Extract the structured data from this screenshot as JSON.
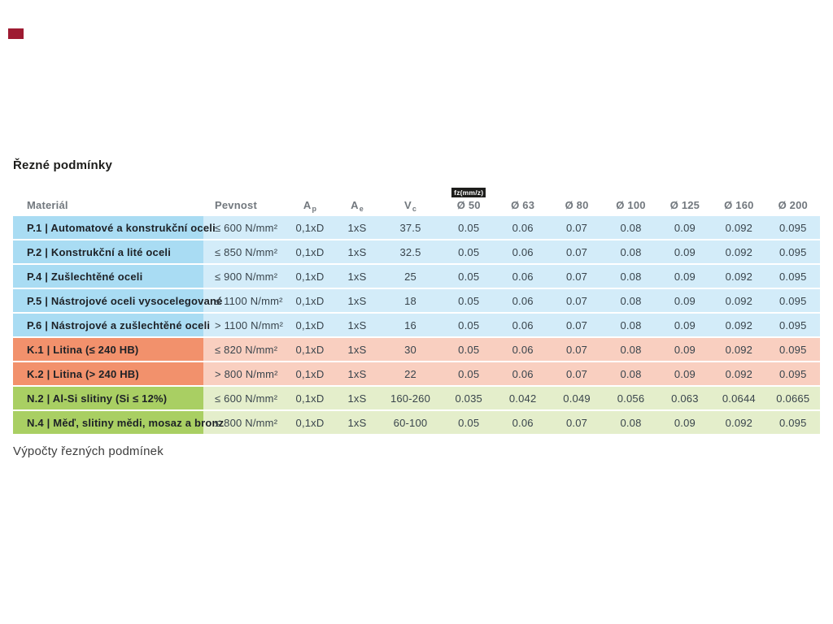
{
  "brand": {
    "mark_color": "#9e1b32"
  },
  "title": "Řezné podmínky",
  "table": {
    "header": {
      "material": "Materiál",
      "strength": "Pevnost",
      "ap_base": "A",
      "ap_sub": "p",
      "ae_base": "A",
      "ae_sub": "e",
      "vc_base": "V",
      "vc_sub": "c",
      "fz_badge": "fz(mm/z)",
      "diameters": [
        "Ø 50",
        "Ø 63",
        "Ø 80",
        "Ø 100",
        "Ø 125",
        "Ø 160",
        "Ø 200"
      ]
    },
    "group_colors": {
      "P": {
        "dark": "#a9dcf3",
        "light": "#d3ecf9"
      },
      "K": {
        "dark": "#f2916c",
        "light": "#f9cfc0"
      },
      "N": {
        "dark": "#a9cf63",
        "light": "#e4eecb"
      }
    },
    "rows": [
      {
        "group": "P",
        "material": "P.1 | Automatové a konstrukční oceli",
        "strength": "≤ 600 N/mm²",
        "ap": "0,1xD",
        "ae": "1xS",
        "vc": "37.5",
        "fz": [
          "0.05",
          "0.06",
          "0.07",
          "0.08",
          "0.09",
          "0.092",
          "0.095"
        ]
      },
      {
        "group": "P",
        "material": "P.2 | Konstrukční a lité oceli",
        "strength": "≤ 850 N/mm²",
        "ap": "0,1xD",
        "ae": "1xS",
        "vc": "32.5",
        "fz": [
          "0.05",
          "0.06",
          "0.07",
          "0.08",
          "0.09",
          "0.092",
          "0.095"
        ]
      },
      {
        "group": "P",
        "material": "P.4 | Zušlechtěné oceli",
        "strength": "≤ 900 N/mm²",
        "ap": "0,1xD",
        "ae": "1xS",
        "vc": "25",
        "fz": [
          "0.05",
          "0.06",
          "0.07",
          "0.08",
          "0.09",
          "0.092",
          "0.095"
        ]
      },
      {
        "group": "P",
        "material": "P.5 | Nástrojové oceli vysocelegované",
        "strength": "≤ 1100 N/mm²",
        "ap": "0,1xD",
        "ae": "1xS",
        "vc": "18",
        "fz": [
          "0.05",
          "0.06",
          "0.07",
          "0.08",
          "0.09",
          "0.092",
          "0.095"
        ]
      },
      {
        "group": "P",
        "material": "P.6 | Nástrojové a zušlechtěné oceli",
        "strength": "> 1100 N/mm²",
        "ap": "0,1xD",
        "ae": "1xS",
        "vc": "16",
        "fz": [
          "0.05",
          "0.06",
          "0.07",
          "0.08",
          "0.09",
          "0.092",
          "0.095"
        ]
      },
      {
        "group": "K",
        "material": "K.1 | Litina (≤ 240 HB)",
        "strength": "≤ 820 N/mm²",
        "ap": "0,1xD",
        "ae": "1xS",
        "vc": "30",
        "fz": [
          "0.05",
          "0.06",
          "0.07",
          "0.08",
          "0.09",
          "0.092",
          "0.095"
        ]
      },
      {
        "group": "K",
        "material": "K.2 | Litina (> 240 HB)",
        "strength": "> 800 N/mm²",
        "ap": "0,1xD",
        "ae": "1xS",
        "vc": "22",
        "fz": [
          "0.05",
          "0.06",
          "0.07",
          "0.08",
          "0.09",
          "0.092",
          "0.095"
        ]
      },
      {
        "group": "N",
        "material": "N.2 | Al-Si slitiny (Si ≤ 12%)",
        "strength": "≤ 600 N/mm²",
        "ap": "0,1xD",
        "ae": "1xS",
        "vc": "160-260",
        "fz": [
          "0.035",
          "0.042",
          "0.049",
          "0.056",
          "0.063",
          "0.0644",
          "0.0665"
        ]
      },
      {
        "group": "N",
        "material": "N.4 | Měď, slitiny mědi, mosaz a bronz",
        "strength": "≤ 800 N/mm²",
        "ap": "0,1xD",
        "ae": "1xS",
        "vc": "60-100",
        "fz": [
          "0.05",
          "0.06",
          "0.07",
          "0.08",
          "0.09",
          "0.092",
          "0.095"
        ]
      }
    ]
  },
  "footer": {
    "heading": "Výpočty řezných podmínek"
  }
}
